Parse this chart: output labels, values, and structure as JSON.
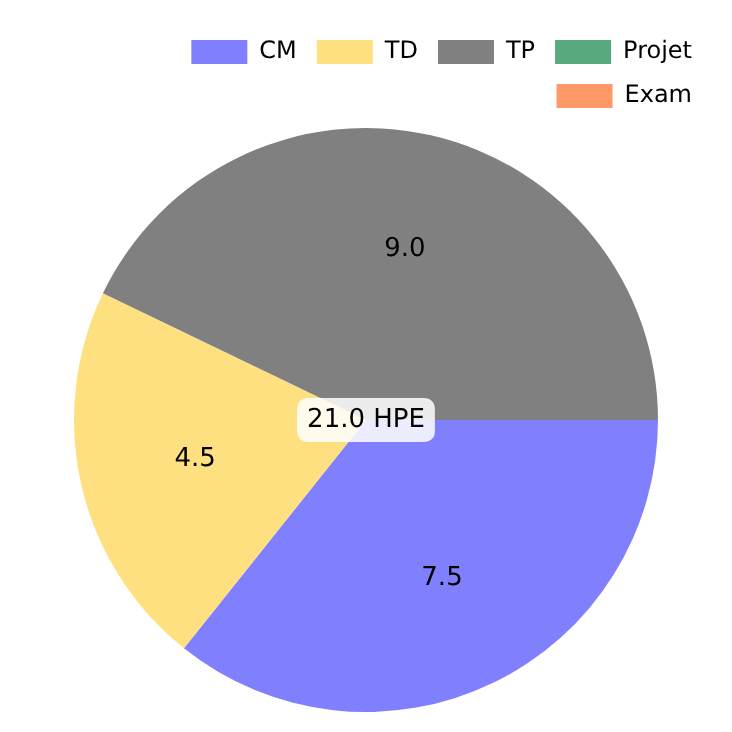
{
  "chart_data": {
    "type": "pie",
    "categories": [
      "CM",
      "TD",
      "TP",
      "Projet",
      "Exam"
    ],
    "values": [
      7.5,
      4.5,
      9.0,
      0,
      0
    ],
    "colors": [
      "#8080ff",
      "#ffe080",
      "#808080",
      "#5aaa80",
      "#ff9966"
    ],
    "value_labels": [
      "7.5",
      "4.5",
      "9.0",
      null,
      null
    ],
    "annotations": [
      "21.0 HPE"
    ],
    "legend": "top right"
  }
}
